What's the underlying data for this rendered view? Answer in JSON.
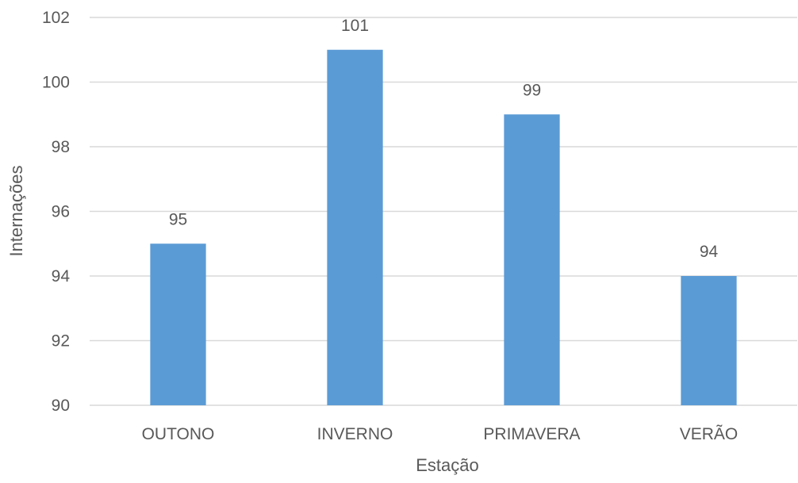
{
  "chart_data": {
    "type": "bar",
    "title": "",
    "xlabel": "Estação",
    "ylabel": "Internações",
    "categories": [
      "OUTONO",
      "INVERNO",
      "PRIMAVERA",
      "VERÃO"
    ],
    "values": [
      95,
      101,
      99,
      94
    ],
    "ylim": [
      90,
      102
    ],
    "yticks": [
      90,
      92,
      94,
      96,
      98,
      100,
      102
    ],
    "grid": true,
    "legend": "none",
    "data_labels": true,
    "bar_color": "#5b9bd5"
  }
}
